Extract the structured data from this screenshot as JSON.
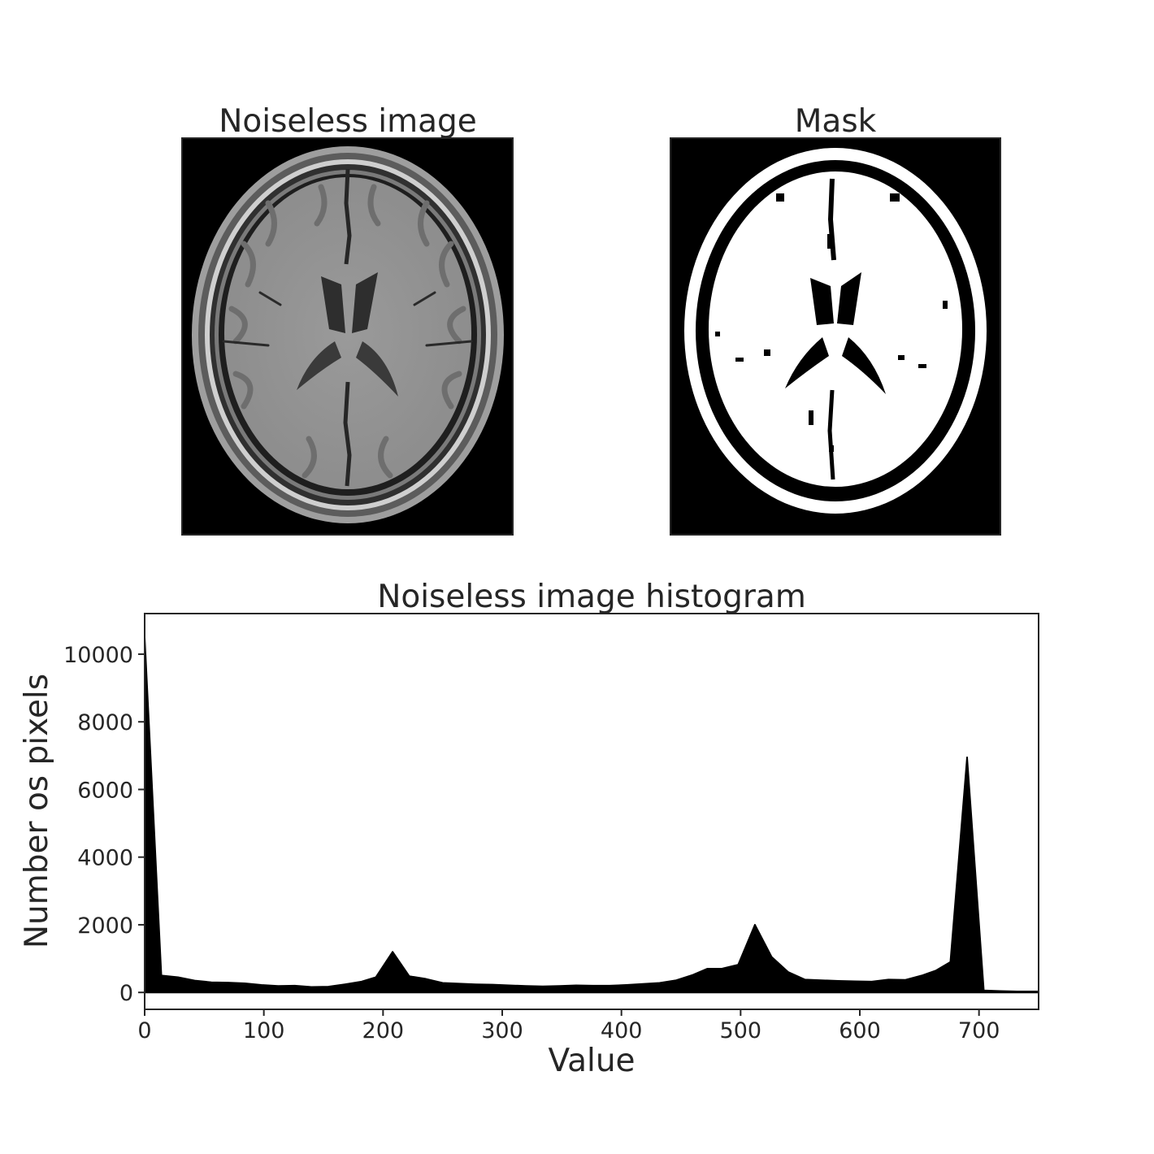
{
  "panels": {
    "image": {
      "title": "Noiseless image"
    },
    "mask": {
      "title": "Mask"
    }
  },
  "chart_data": {
    "type": "area",
    "title": "Noiseless image histogram",
    "xlabel": "Value",
    "ylabel": "Number os pixels",
    "xlim": [
      0,
      750
    ],
    "ylim": [
      -500,
      11200
    ],
    "xticks": [
      0,
      100,
      200,
      300,
      400,
      500,
      600,
      700
    ],
    "yticks": [
      0,
      2000,
      4000,
      6000,
      8000,
      10000
    ],
    "grid": false,
    "fill_color": "#000000",
    "x": [
      0,
      14,
      28,
      42,
      56,
      70,
      84,
      98,
      112,
      126,
      140,
      154,
      168,
      182,
      194,
      208,
      222,
      236,
      250,
      264,
      278,
      292,
      306,
      320,
      334,
      348,
      362,
      376,
      390,
      404,
      418,
      432,
      446,
      460,
      472,
      484,
      498,
      512,
      526,
      540,
      554,
      568,
      582,
      596,
      610,
      624,
      638,
      652,
      664,
      676,
      690,
      704,
      718,
      732,
      750
    ],
    "y": [
      10500,
      500,
      450,
      350,
      300,
      290,
      270,
      220,
      190,
      200,
      160,
      170,
      240,
      320,
      450,
      1200,
      480,
      400,
      280,
      260,
      240,
      230,
      210,
      190,
      180,
      190,
      210,
      200,
      200,
      220,
      250,
      280,
      360,
      520,
      700,
      700,
      820,
      2000,
      1050,
      600,
      380,
      360,
      340,
      330,
      320,
      380,
      370,
      500,
      650,
      900,
      6950,
      60,
      40,
      30,
      30
    ]
  }
}
